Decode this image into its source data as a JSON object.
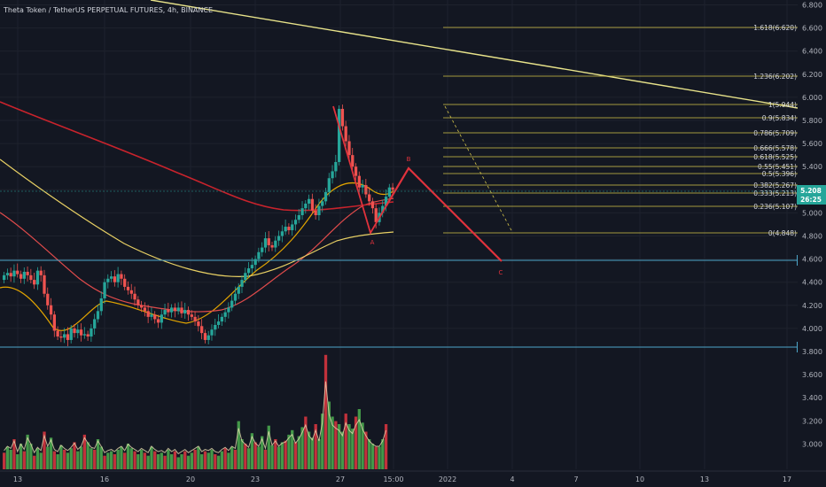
{
  "chart_data": {
    "type": "candlestick",
    "title": "Theta Token / TetherUS PERPETUAL FUTURES, 4h, BINANCE",
    "symbol": "THETAUSDT",
    "timeframe": "4h",
    "exchange": "BINANCE",
    "price_axis": {
      "ticks": [
        "6.800",
        "6.600",
        "6.400",
        "6.200",
        "6.000",
        "5.800",
        "5.600",
        "5.400",
        "5.200",
        "5.000",
        "4.800",
        "4.600",
        "4.400",
        "4.200",
        "4.000",
        "3.800",
        "3.600",
        "3.400",
        "3.200",
        "3.000"
      ]
    },
    "time_axis": {
      "ticks": [
        "13",
        "16",
        "20",
        "23",
        "27",
        "15:00",
        "2022",
        "4",
        "7",
        "10",
        "13",
        "17"
      ]
    },
    "last_price": "5.208",
    "countdown": "26:25",
    "horizontal_levels": [
      {
        "label": "4.616",
        "color": "#4ea6c9"
      },
      {
        "label": "3.875",
        "color": "#4ea6c9"
      }
    ],
    "fibonacci_levels": [
      {
        "ratio": "1.618",
        "label": "1.618(6.620)",
        "price": 6.62
      },
      {
        "ratio": "1.236",
        "label": "1.236(6.202)",
        "price": 6.202
      },
      {
        "ratio": "1",
        "label": "1(5.944)",
        "price": 5.944
      },
      {
        "ratio": "0.9",
        "label": "0.9(5.834)",
        "price": 5.834
      },
      {
        "ratio": "0.786",
        "label": "0.786(5.709)",
        "price": 5.709
      },
      {
        "ratio": "0.666",
        "label": "0.666(5.578)",
        "price": 5.578
      },
      {
        "ratio": "0.618",
        "label": "0.618(5.525)",
        "price": 5.525
      },
      {
        "ratio": "0.55",
        "label": "0.55(5.451)",
        "price": 5.451
      },
      {
        "ratio": "0.5",
        "label": "0.5(5.396)",
        "price": 5.396
      },
      {
        "ratio": "0.382",
        "label": "0.382(5.267)",
        "price": 5.267
      },
      {
        "ratio": "0.333",
        "label": "0.333(5.213)",
        "price": 5.213
      },
      {
        "ratio": "0.236",
        "label": "0.236(5.107)",
        "price": 5.107
      },
      {
        "ratio": "0",
        "label": "0(4.848)",
        "price": 4.848
      }
    ],
    "wave_labels": [
      "A",
      "B",
      "C"
    ],
    "candles_close": [
      4.46,
      4.48,
      4.45,
      4.5,
      4.47,
      4.43,
      4.49,
      4.46,
      4.42,
      4.38,
      4.5,
      4.46,
      4.3,
      4.2,
      4.12,
      3.98,
      3.93,
      3.92,
      3.95,
      3.9,
      4.0,
      3.96,
      3.99,
      3.94,
      3.95,
      3.93,
      4.0,
      4.08,
      4.15,
      4.26,
      4.4,
      4.43,
      4.45,
      4.4,
      4.47,
      4.43,
      4.36,
      4.33,
      4.3,
      4.25,
      4.2,
      4.18,
      4.15,
      4.1,
      4.12,
      4.08,
      4.05,
      4.12,
      4.16,
      4.14,
      4.18,
      4.15,
      4.18,
      4.13,
      4.16,
      4.12,
      4.1,
      4.06,
      4.02,
      3.96,
      3.9,
      3.94,
      3.99,
      4.03,
      4.06,
      4.1,
      4.14,
      4.18,
      4.24,
      4.3,
      4.36,
      4.42,
      4.48,
      4.52,
      4.55,
      4.6,
      4.66,
      4.7,
      4.78,
      4.72,
      4.7,
      4.76,
      4.8,
      4.84,
      4.88,
      4.85,
      4.9,
      4.94,
      4.98,
      5.04,
      5.08,
      5.12,
      5.02,
      4.98,
      5.06,
      5.1,
      5.18,
      5.3,
      5.36,
      5.44,
      5.9,
      5.75,
      5.62,
      5.5,
      5.4,
      5.32,
      5.22,
      5.24,
      5.16,
      5.1,
      5.04,
      4.92,
      5.0,
      5.06,
      5.14,
      5.22,
      5.2
    ],
    "ma_series": [
      {
        "color": "#e2a400"
      },
      {
        "color": "#e04b4b"
      },
      {
        "color": "#e8d064"
      },
      {
        "color": "#c8232c"
      }
    ],
    "projection_path": {
      "color": "#e0323c"
    }
  }
}
